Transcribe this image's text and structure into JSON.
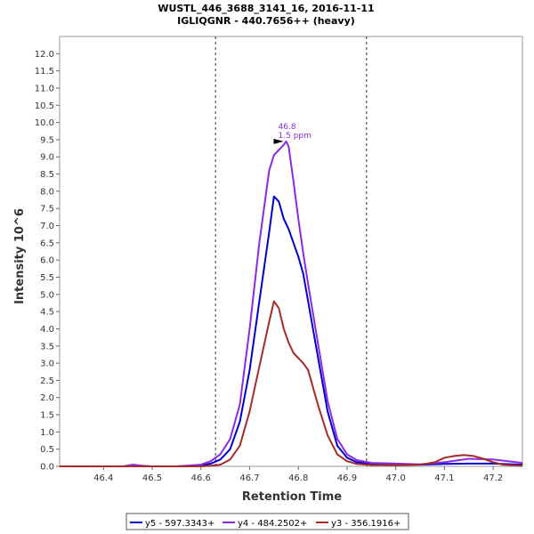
{
  "chart_data": {
    "type": "line",
    "title": "WUSTL_446_3688_3141_16, 2016-11-11",
    "subtitle": "IGLIQGNR - 440.7656++ (heavy)",
    "xlabel": "Retention Time",
    "ylabel": "Intensity 10^6",
    "xlim": [
      46.31,
      47.26
    ],
    "ylim": [
      0,
      12.5
    ],
    "xticks": [
      "46.4",
      "46.5",
      "46.6",
      "46.7",
      "46.8",
      "46.9",
      "47.0",
      "47.1",
      "47.2"
    ],
    "yticks": [
      "0.0",
      "0.5",
      "1.0",
      "1.5",
      "2.0",
      "2.5",
      "3.0",
      "3.5",
      "4.0",
      "4.5",
      "5.0",
      "5.5",
      "6.0",
      "6.5",
      "7.0",
      "7.5",
      "8.0",
      "8.5",
      "9.0",
      "9.5",
      "10.0",
      "10.5",
      "11.0",
      "11.5",
      "12.0"
    ],
    "vlines": [
      46.63,
      46.94
    ],
    "annotation": {
      "x": 46.775,
      "y": 9.45,
      "lines": [
        "46.8",
        "1.5 ppm"
      ],
      "color": "#8a2be2"
    },
    "legend_position": "bottom",
    "series": [
      {
        "name": "y5 - 597.3343+",
        "color": "#0000cc",
        "x": [
          46.31,
          46.45,
          46.5,
          46.55,
          46.6,
          46.62,
          46.64,
          46.66,
          46.68,
          46.7,
          46.72,
          46.74,
          46.75,
          46.76,
          46.77,
          46.78,
          46.79,
          46.8,
          46.81,
          46.82,
          46.84,
          46.86,
          46.88,
          46.9,
          46.92,
          46.95,
          47.0,
          47.05,
          47.1,
          47.15,
          47.2,
          47.26
        ],
        "y": [
          0.0,
          0.0,
          0.0,
          0.0,
          0.02,
          0.08,
          0.2,
          0.5,
          1.3,
          2.8,
          4.8,
          6.8,
          7.85,
          7.7,
          7.2,
          6.9,
          6.5,
          6.1,
          5.6,
          4.8,
          3.2,
          1.6,
          0.6,
          0.25,
          0.12,
          0.08,
          0.05,
          0.05,
          0.07,
          0.08,
          0.08,
          0.05
        ]
      },
      {
        "name": "y4 - 484.2502+",
        "color": "#8a2be2",
        "x": [
          46.31,
          46.44,
          46.46,
          46.48,
          46.5,
          46.55,
          46.6,
          46.62,
          46.64,
          46.66,
          46.68,
          46.7,
          46.72,
          46.74,
          46.75,
          46.76,
          46.77,
          46.775,
          46.78,
          46.79,
          46.8,
          46.81,
          46.82,
          46.84,
          46.86,
          46.88,
          46.9,
          46.92,
          46.95,
          47.0,
          47.05,
          47.1,
          47.15,
          47.2,
          47.26
        ],
        "y": [
          0.0,
          0.0,
          0.05,
          0.02,
          0.0,
          0.0,
          0.05,
          0.15,
          0.35,
          0.8,
          1.8,
          4.0,
          6.5,
          8.6,
          9.05,
          9.2,
          9.35,
          9.45,
          9.3,
          8.3,
          7.2,
          6.2,
          5.3,
          3.6,
          1.9,
          0.8,
          0.35,
          0.18,
          0.1,
          0.08,
          0.06,
          0.12,
          0.22,
          0.2,
          0.1
        ]
      },
      {
        "name": "y3 - 356.1916+",
        "color": "#a52a2a",
        "x": [
          46.31,
          46.55,
          46.6,
          46.62,
          46.64,
          46.66,
          46.68,
          46.7,
          46.72,
          46.74,
          46.75,
          46.76,
          46.77,
          46.78,
          46.79,
          46.8,
          46.81,
          46.82,
          46.84,
          46.86,
          46.88,
          46.9,
          46.92,
          46.95,
          47.0,
          47.05,
          47.08,
          47.1,
          47.12,
          47.14,
          47.16,
          47.18,
          47.2,
          47.22,
          47.26
        ],
        "y": [
          0.0,
          0.0,
          0.0,
          0.02,
          0.05,
          0.2,
          0.6,
          1.6,
          2.9,
          4.2,
          4.8,
          4.6,
          4.0,
          3.6,
          3.3,
          3.15,
          3.0,
          2.8,
          1.8,
          0.9,
          0.35,
          0.15,
          0.07,
          0.04,
          0.03,
          0.05,
          0.12,
          0.25,
          0.3,
          0.33,
          0.3,
          0.22,
          0.12,
          0.05,
          0.02
        ]
      }
    ]
  }
}
